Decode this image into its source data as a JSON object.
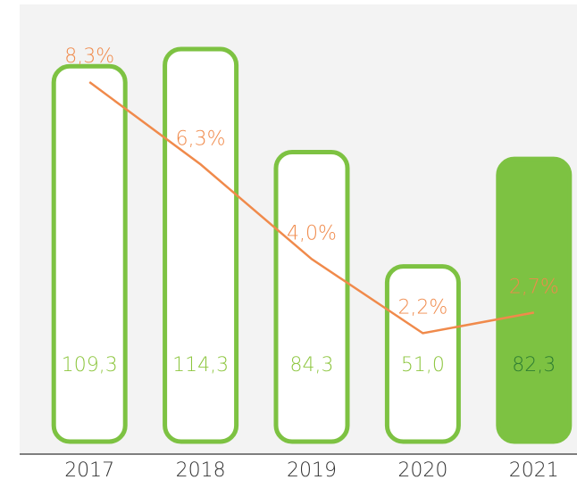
{
  "chart_data": {
    "type": "bar",
    "categories": [
      "2017",
      "2018",
      "2019",
      "2020",
      "2021"
    ],
    "series": [
      {
        "type": "bar",
        "values": [
          109.3,
          114.3,
          84.3,
          51.0,
          82.3
        ],
        "value_labels": [
          "109,3",
          "114,3",
          "84,3",
          "51,0",
          "82,3"
        ],
        "color": "#7dc242",
        "fill_colors": [
          "#ffffff",
          "#ffffff",
          "#ffffff",
          "#ffffff",
          "#7dc242"
        ],
        "label_colors": [
          "#8dc63f",
          "#8dc63f",
          "#8dc63f",
          "#8dc63f",
          "#2e7d32"
        ]
      },
      {
        "type": "line",
        "values": [
          8.3,
          6.3,
          4.0,
          2.2,
          2.7
        ],
        "value_labels": [
          "8,3%",
          "6,3%",
          "4,0%",
          "2,2%",
          "2,7%"
        ],
        "color": "#f08a4b"
      }
    ]
  }
}
